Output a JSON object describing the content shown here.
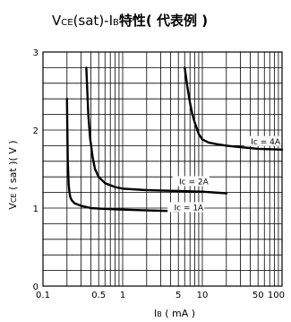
{
  "chart_data": {
    "type": "line",
    "title": {
      "part1_main": "V",
      "part1_sub": "CE",
      "part2": "(sat)-I",
      "part3_sub": "B",
      "part4_bold": "特性( 代表例 )"
    },
    "xlabel": {
      "main": "I",
      "sub": "B",
      "unit": " ( mA )"
    },
    "ylabel": {
      "main": "V",
      "sub": "CE",
      "unit": " ( sat )( V )"
    },
    "x_scale": "log",
    "xlim": [
      0.1,
      100
    ],
    "ylim": [
      0,
      3
    ],
    "grid": true,
    "x_tick_labels": [
      {
        "value": 0.1,
        "label": "0.1"
      },
      {
        "value": 0.5,
        "label": "0.5"
      },
      {
        "value": 1,
        "label": "1"
      },
      {
        "value": 5,
        "label": "5"
      },
      {
        "value": 10,
        "label": "10"
      },
      {
        "value": 50,
        "label": "50"
      },
      {
        "value": 100,
        "label": "100"
      }
    ],
    "y_tick_labels": [
      {
        "value": 0,
        "label": "0"
      },
      {
        "value": 1,
        "label": "1"
      },
      {
        "value": 2,
        "label": "2"
      },
      {
        "value": 3,
        "label": "3"
      }
    ],
    "series": [
      {
        "name": "Ic = 1A",
        "x": [
          0.2,
          0.202,
          0.205,
          0.21,
          0.215,
          0.22,
          0.23,
          0.25,
          0.3,
          0.4,
          0.6,
          1,
          2,
          5
        ],
        "y": [
          2.4,
          2.0,
          1.6,
          1.3,
          1.2,
          1.14,
          1.1,
          1.06,
          1.03,
          1.0,
          0.99,
          0.98,
          0.97,
          0.96
        ]
      },
      {
        "name": "Ic = 2A",
        "x": [
          0.35,
          0.36,
          0.37,
          0.39,
          0.42,
          0.45,
          0.5,
          0.6,
          0.8,
          1,
          2,
          5,
          10,
          20
        ],
        "y": [
          2.8,
          2.5,
          2.2,
          1.9,
          1.65,
          1.5,
          1.4,
          1.32,
          1.27,
          1.25,
          1.23,
          1.22,
          1.21,
          1.19
        ]
      },
      {
        "name": "Ic = 4A",
        "x": [
          6,
          6.5,
          7,
          7.5,
          8,
          9,
          10,
          12,
          15,
          20,
          30,
          50,
          100
        ],
        "y": [
          2.8,
          2.55,
          2.35,
          2.2,
          2.1,
          1.95,
          1.88,
          1.84,
          1.82,
          1.8,
          1.78,
          1.76,
          1.75
        ]
      }
    ]
  }
}
